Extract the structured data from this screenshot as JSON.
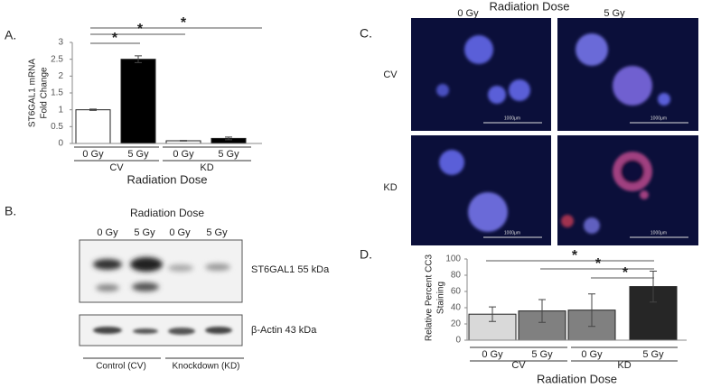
{
  "chart_data": [
    {
      "type": "bar",
      "categories": [
        "0 Gy",
        "5 Gy",
        "0 Gy",
        "5 Gy"
      ],
      "groups": [
        "CV",
        "KD"
      ],
      "values": [
        1.0,
        2.5,
        0.08,
        0.15
      ],
      "errors": [
        0.02,
        0.1,
        0.01,
        0.04
      ],
      "colors": [
        "#ffffff",
        "#000000",
        "#ffffff",
        "#000000"
      ],
      "y_label": [
        "ST6GAL1 mRNA",
        "Fold Change"
      ],
      "x_label": "Radiation Dose",
      "ylim": [
        0,
        3
      ],
      "yticks": [
        0,
        0.5,
        1,
        1.5,
        2,
        2.5,
        3
      ],
      "significance": [
        "*",
        "*",
        "*"
      ]
    },
    {
      "type": "bar",
      "categories": [
        "0 Gy",
        "5 Gy",
        "0 Gy",
        "5 Gy"
      ],
      "groups": [
        "CV",
        "KD"
      ],
      "values": [
        32,
        36,
        37,
        66
      ],
      "errors": [
        9,
        14,
        20,
        19
      ],
      "colors": [
        "#d9d9d9",
        "#808080",
        "#808080",
        "#262626"
      ],
      "y_label": [
        "Relative Percent CC3",
        "Staining"
      ],
      "x_label": "Radiation Dose",
      "ylim": [
        0,
        100
      ],
      "yticks": [
        0,
        20,
        40,
        60,
        80,
        100
      ],
      "significance": [
        "*",
        "*",
        "*"
      ]
    }
  ],
  "panels": [
    "A.",
    "B.",
    "C.",
    "D."
  ],
  "blot": {
    "title": "Radiation Dose",
    "lanes": [
      "0 Gy",
      "5 Gy",
      "0 Gy",
      "5 Gy"
    ],
    "bands": [
      "ST6GAL1 55 kDa",
      "β-Actin 43 kDa"
    ],
    "groups": [
      "Control (CV)",
      "Knockdown (KD)"
    ]
  },
  "microscopy": {
    "title": "Radiation Dose",
    "columns": [
      "0 Gy",
      "5 Gy"
    ],
    "rows": [
      "CV",
      "KD"
    ],
    "scale_bars": [
      "1000μm",
      "1000μm",
      "1000μm",
      "1000μm"
    ]
  }
}
